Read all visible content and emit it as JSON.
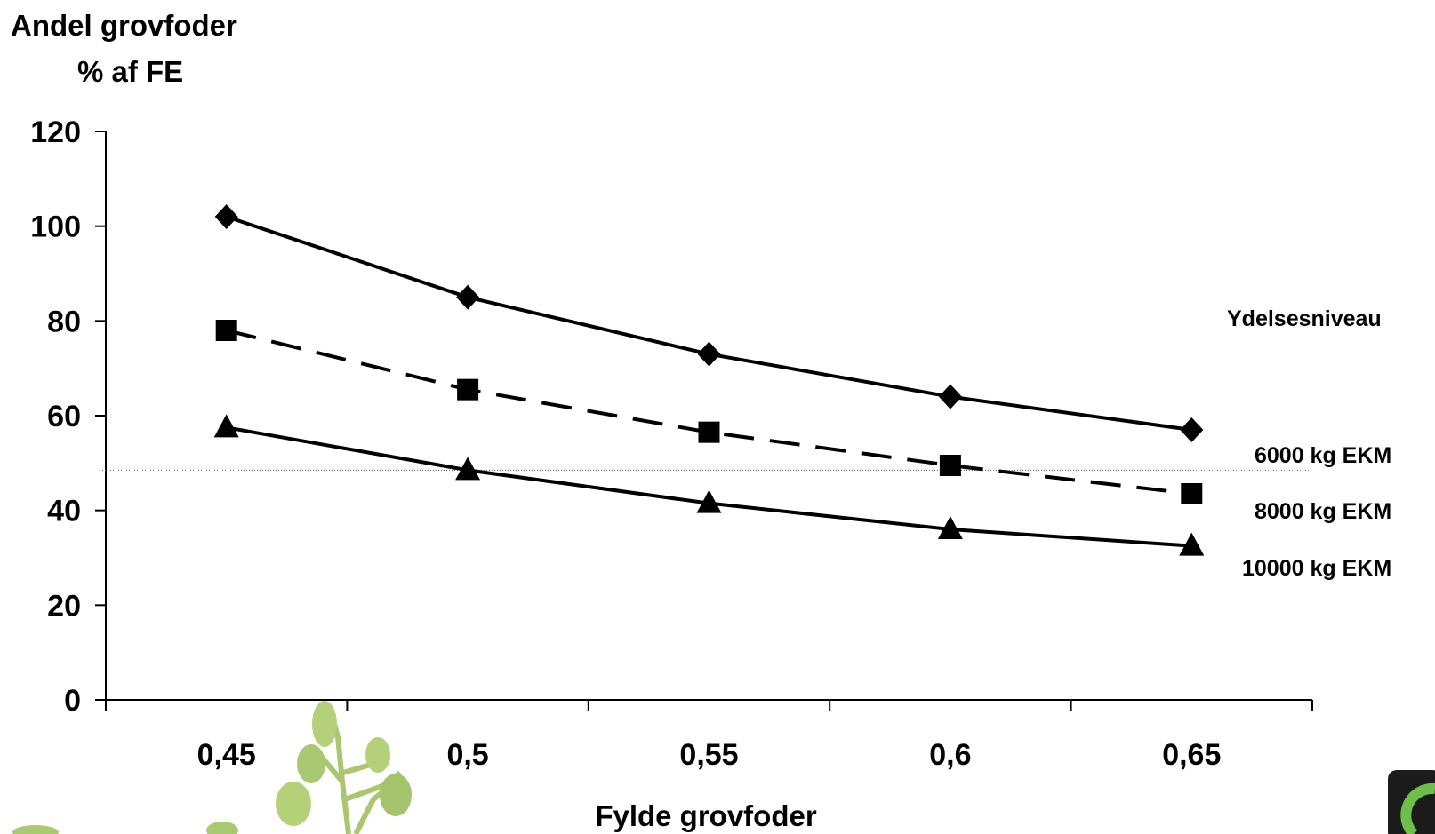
{
  "chart_data": {
    "type": "line",
    "ylabel_line1": "Andel grovfoder",
    "ylabel_line2": "% af FE",
    "xlabel": "Fylde grovfoder",
    "categories": [
      "0,45",
      "0,5",
      "0,55",
      "0,6",
      "0,65"
    ],
    "x": [
      0.45,
      0.5,
      0.55,
      0.6,
      0.65
    ],
    "ylim": [
      0,
      120
    ],
    "yticks": [
      0,
      20,
      40,
      60,
      80,
      100,
      120
    ],
    "legend_title": "Ydelsesniveau",
    "legend_placement": "right",
    "reference_line_y": 48.5,
    "series": [
      {
        "name": "6000 kg EKM",
        "values": [
          102,
          85,
          73,
          64,
          57
        ],
        "marker": "diamond",
        "dash": "solid",
        "color": "#000000"
      },
      {
        "name": "8000 kg EKM",
        "values": [
          78,
          65.5,
          56.5,
          49.5,
          43.5
        ],
        "marker": "square",
        "dash": "dashed",
        "color": "#000000"
      },
      {
        "name": "10000 kg EKM",
        "values": [
          57.5,
          48.5,
          41.5,
          36,
          32.5
        ],
        "marker": "triangle",
        "dash": "solid",
        "color": "#000000"
      }
    ]
  }
}
